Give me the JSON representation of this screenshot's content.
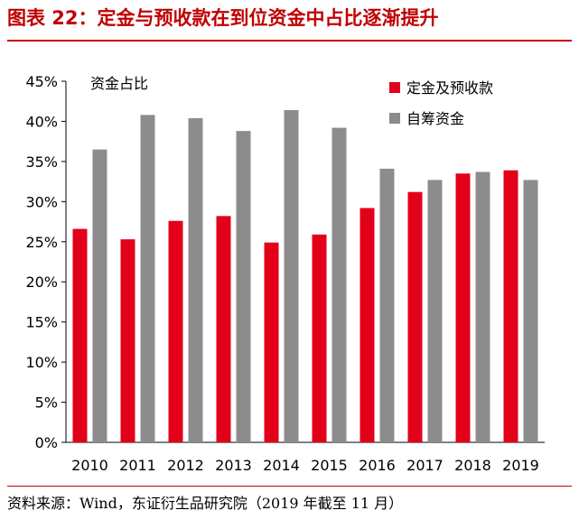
{
  "figure_title": "图表 22：定金与预收款在到位资金中占比逐渐提升",
  "source_note": "资料来源：Wind，东证衍生品研究院（2019 年截至 11 月）",
  "chart_data": {
    "type": "bar",
    "title": "资金占比",
    "categories": [
      "2010",
      "2011",
      "2012",
      "2013",
      "2014",
      "2015",
      "2016",
      "2017",
      "2018",
      "2019"
    ],
    "series": [
      {
        "name": "定金及预收款",
        "color": "#e2001a",
        "values": [
          26.6,
          25.3,
          27.6,
          28.2,
          24.9,
          25.9,
          29.2,
          31.2,
          33.5,
          33.9
        ]
      },
      {
        "name": "自筹资金",
        "color": "#8c8c8c",
        "values": [
          36.5,
          40.8,
          40.4,
          38.8,
          41.4,
          39.2,
          34.1,
          32.7,
          33.7,
          32.7
        ]
      }
    ],
    "ylim": [
      0,
      45
    ],
    "ytick_step": 5,
    "ytick_format": "percent",
    "xlabel": "",
    "ylabel": "",
    "grid": false,
    "legend_position": "top-right"
  }
}
